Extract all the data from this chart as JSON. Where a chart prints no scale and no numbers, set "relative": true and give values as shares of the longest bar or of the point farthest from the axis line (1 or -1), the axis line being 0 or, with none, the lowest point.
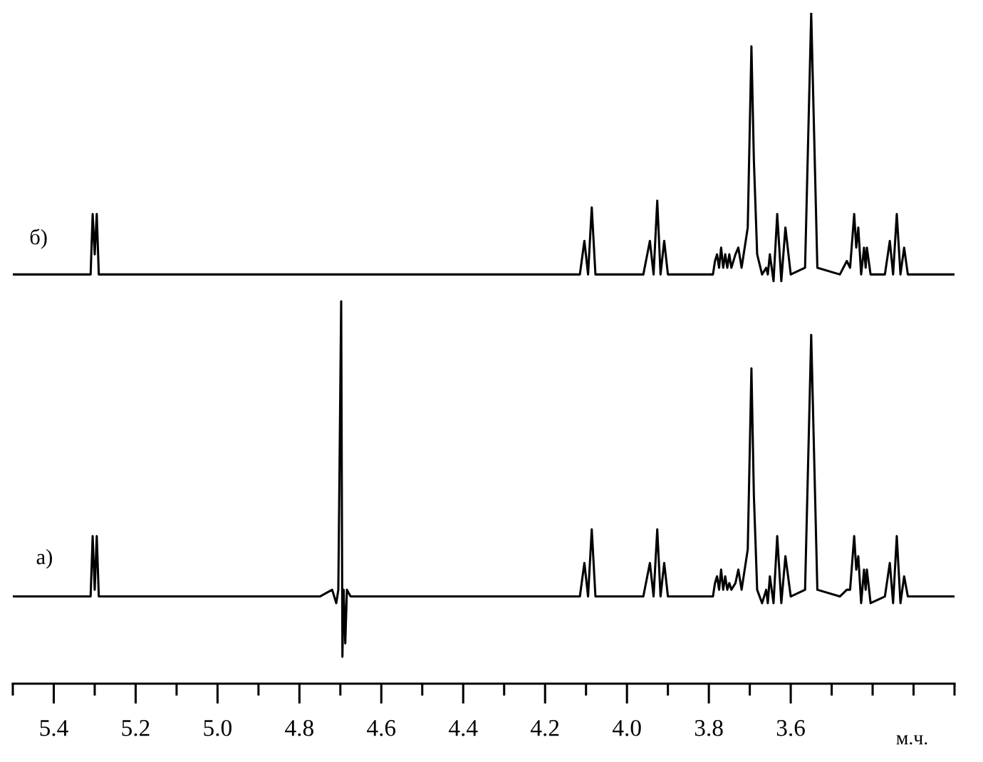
{
  "chart_data": {
    "type": "line",
    "relative": true,
    "xlim": [
      5.5,
      3.2
    ],
    "xlabel": "м.ч.",
    "xticks": [
      {
        "value": 5.5,
        "label": null
      },
      5.4,
      {
        "value": 5.3,
        "label": null
      },
      5.2,
      {
        "value": 5.1,
        "label": null
      },
      {
        "value": 5.0,
        "label": "5.0"
      },
      {
        "value": 4.9,
        "label": null
      },
      4.8,
      {
        "value": 4.7,
        "label": null
      },
      4.6,
      {
        "value": 4.5,
        "label": null
      },
      4.4,
      {
        "value": 4.3,
        "label": null
      },
      4.2,
      {
        "value": 4.1,
        "label": null
      },
      {
        "value": 4.0,
        "label": "4.0"
      },
      {
        "value": 3.9,
        "label": null
      },
      3.8,
      {
        "value": 3.7,
        "label": null
      },
      3.6,
      {
        "value": 3.5,
        "label": null
      },
      {
        "value": 3.4,
        "label": null
      },
      {
        "value": 3.3,
        "label": null
      },
      {
        "value": 3.2,
        "label": null
      }
    ],
    "series": [
      {
        "name": "б)",
        "color": "#000000",
        "x": [
          5.5,
          5.42,
          5.35,
          5.31,
          5.305,
          5.3,
          5.295,
          5.29,
          5.2,
          5.0,
          4.8,
          4.6,
          4.4,
          4.2,
          4.115,
          4.104,
          4.095,
          4.086,
          4.077,
          3.96,
          3.944,
          3.935,
          3.926,
          3.918,
          3.909,
          3.9,
          3.79,
          3.785,
          3.78,
          3.775,
          3.77,
          3.765,
          3.76,
          3.755,
          3.75,
          3.745,
          3.735,
          3.728,
          3.72,
          3.705,
          3.696,
          3.69,
          3.682,
          3.67,
          3.66,
          3.656,
          3.651,
          3.642,
          3.633,
          3.623,
          3.613,
          3.6,
          3.565,
          3.55,
          3.535,
          3.48,
          3.463,
          3.455,
          3.445,
          3.44,
          3.435,
          3.428,
          3.421,
          3.417,
          3.414,
          3.405,
          3.37,
          3.358,
          3.35,
          3.341,
          3.332,
          3.323,
          3.314,
          3.25,
          3.2
        ],
        "values": [
          0.61,
          0.61,
          0.61,
          0.61,
          0.7,
          0.64,
          0.7,
          0.61,
          0.61,
          0.61,
          0.61,
          0.61,
          0.61,
          0.61,
          0.61,
          0.66,
          0.61,
          0.71,
          0.61,
          0.61,
          0.66,
          0.61,
          0.72,
          0.61,
          0.66,
          0.61,
          0.61,
          0.63,
          0.64,
          0.62,
          0.65,
          0.62,
          0.64,
          0.62,
          0.64,
          0.62,
          0.64,
          0.65,
          0.62,
          0.68,
          0.95,
          0.78,
          0.64,
          0.61,
          0.62,
          0.61,
          0.64,
          0.6,
          0.7,
          0.6,
          0.68,
          0.61,
          0.62,
          1,
          0.62,
          0.61,
          0.63,
          0.62,
          0.7,
          0.65,
          0.68,
          0.61,
          0.65,
          0.62,
          0.65,
          0.61,
          0.61,
          0.66,
          0.61,
          0.7,
          0.61,
          0.65,
          0.61,
          0.61,
          0.61
        ]
      },
      {
        "name": "а)",
        "color": "#000000",
        "x": [
          5.5,
          5.42,
          5.31,
          5.305,
          5.3,
          5.295,
          5.29,
          5.1,
          4.9,
          4.75,
          4.72,
          4.71,
          4.705,
          4.698,
          4.695,
          4.692,
          4.688,
          4.684,
          4.675,
          4.5,
          4.3,
          4.115,
          4.104,
          4.095,
          4.086,
          4.077,
          3.96,
          3.944,
          3.935,
          3.926,
          3.918,
          3.909,
          3.9,
          3.79,
          3.785,
          3.78,
          3.775,
          3.77,
          3.765,
          3.76,
          3.755,
          3.75,
          3.745,
          3.735,
          3.728,
          3.72,
          3.705,
          3.696,
          3.69,
          3.682,
          3.67,
          3.66,
          3.656,
          3.651,
          3.642,
          3.633,
          3.623,
          3.613,
          3.6,
          3.565,
          3.55,
          3.535,
          3.48,
          3.463,
          3.455,
          3.445,
          3.44,
          3.435,
          3.428,
          3.421,
          3.417,
          3.414,
          3.405,
          3.37,
          3.358,
          3.35,
          3.341,
          3.332,
          3.323,
          3.314,
          3.25,
          3.2
        ],
        "values": [
          0.13,
          0.13,
          0.13,
          0.22,
          0.14,
          0.22,
          0.13,
          0.13,
          0.13,
          0.13,
          0.14,
          0.12,
          0.14,
          0.57,
          0.04,
          0.14,
          0.06,
          0.14,
          0.13,
          0.13,
          0.13,
          0.13,
          0.18,
          0.13,
          0.23,
          0.13,
          0.13,
          0.18,
          0.13,
          0.23,
          0.13,
          0.18,
          0.13,
          0.13,
          0.15,
          0.16,
          0.14,
          0.17,
          0.14,
          0.16,
          0.14,
          0.15,
          0.14,
          0.15,
          0.17,
          0.14,
          0.2,
          0.47,
          0.28,
          0.14,
          0.12,
          0.14,
          0.12,
          0.16,
          0.12,
          0.22,
          0.12,
          0.19,
          0.13,
          0.14,
          0.52,
          0.14,
          0.13,
          0.14,
          0.14,
          0.22,
          0.17,
          0.19,
          0.12,
          0.17,
          0.14,
          0.17,
          0.12,
          0.13,
          0.18,
          0.12,
          0.22,
          0.12,
          0.16,
          0.13,
          0.13,
          0.13
        ]
      }
    ]
  }
}
